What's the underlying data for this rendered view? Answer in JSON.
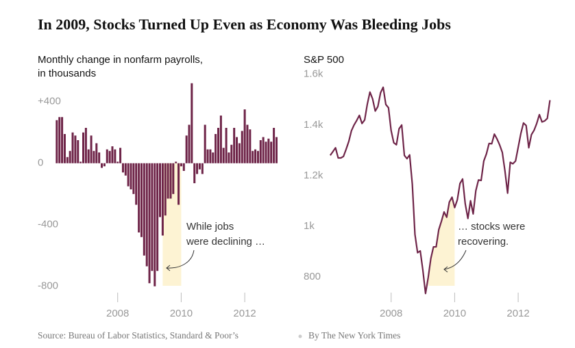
{
  "title": "In 2009, Stocks Turned Up Even as Economy Was Bleeding Jobs",
  "source": "Source: Bureau of Labor Statistics, Standard & Poor’s",
  "byline": "By The New York Times",
  "chart_data": [
    {
      "type": "bar",
      "ylabel": [
        "Monthly change in nonfarm payrolls,",
        "in thousands"
      ],
      "color": "#6e2448",
      "xlim": [
        2006,
        2013.4
      ],
      "xticks": [
        2008,
        2010,
        2012
      ],
      "ylim": [
        -850,
        550
      ],
      "yticks": [
        {
          "value": 400,
          "label": "+400"
        },
        0,
        -400,
        -800
      ],
      "grid": false,
      "highlight": {
        "x": [
          2009.417,
          2010
        ],
        "color": "#fdf3d3"
      },
      "annotation": [
        "While jobs",
        "were declining …"
      ],
      "x": [
        2006.083,
        2006.167,
        2006.25,
        2006.333,
        2006.417,
        2006.5,
        2006.583,
        2006.667,
        2006.75,
        2006.833,
        2006.917,
        2007,
        2007.083,
        2007.167,
        2007.25,
        2007.333,
        2007.417,
        2007.5,
        2007.583,
        2007.667,
        2007.75,
        2007.833,
        2007.917,
        2008,
        2008.083,
        2008.167,
        2008.25,
        2008.333,
        2008.417,
        2008.5,
        2008.583,
        2008.667,
        2008.75,
        2008.833,
        2008.917,
        2009,
        2009.083,
        2009.167,
        2009.25,
        2009.333,
        2009.417,
        2009.5,
        2009.583,
        2009.667,
        2009.75,
        2009.833,
        2009.917,
        2010,
        2010.083,
        2010.167,
        2010.25,
        2010.333,
        2010.417,
        2010.5,
        2010.583,
        2010.667,
        2010.75,
        2010.833,
        2010.917,
        2011,
        2011.083,
        2011.167,
        2011.25,
        2011.333,
        2011.417,
        2011.5,
        2011.583,
        2011.667,
        2011.75,
        2011.833,
        2011.917,
        2012,
        2012.083,
        2012.167,
        2012.25,
        2012.333,
        2012.417,
        2012.5,
        2012.583,
        2012.667,
        2012.75,
        2012.833,
        2012.917,
        2013
      ],
      "values": [
        280,
        300,
        300,
        190,
        40,
        80,
        200,
        180,
        150,
        10,
        200,
        230,
        90,
        180,
        80,
        130,
        70,
        -30,
        -20,
        90,
        80,
        110,
        90,
        10,
        100,
        -60,
        -80,
        -150,
        -170,
        -200,
        -270,
        -450,
        -480,
        -600,
        -670,
        -780,
        -700,
        -800,
        -700,
        -350,
        -470,
        -340,
        -230,
        -230,
        -200,
        10,
        -270,
        -20,
        -50,
        180,
        250,
        520,
        -130,
        -70,
        -40,
        -70,
        250,
        90,
        90,
        70,
        190,
        230,
        310,
        100,
        230,
        70,
        120,
        230,
        170,
        130,
        210,
        350,
        250,
        220,
        80,
        90,
        80,
        150,
        170,
        140,
        160,
        140,
        230,
        170
      ]
    },
    {
      "type": "line",
      "ylabel": [
        "S&P 500"
      ],
      "color": "#6e2448",
      "xlim": [
        2006,
        2013.4
      ],
      "xticks": [
        2008,
        2010,
        2012
      ],
      "ylim": [
        760,
        1610
      ],
      "yticks": [
        {
          "value": 1600,
          "label": "1.6k"
        },
        {
          "value": 1400,
          "label": "1.4k"
        },
        {
          "value": 1200,
          "label": "1.2k"
        },
        {
          "value": 1000,
          "label": "1k"
        },
        800
      ],
      "grid": false,
      "highlight": {
        "x": [
          2009.167,
          2010
        ],
        "color": "#fdf3d3"
      },
      "annotation": [
        "… stocks were",
        "recovering."
      ],
      "x": [
        2006.083,
        2006.167,
        2006.25,
        2006.333,
        2006.417,
        2006.5,
        2006.583,
        2006.667,
        2006.75,
        2006.833,
        2006.917,
        2007,
        2007.083,
        2007.167,
        2007.25,
        2007.333,
        2007.417,
        2007.5,
        2007.583,
        2007.667,
        2007.75,
        2007.833,
        2007.917,
        2008,
        2008.083,
        2008.167,
        2008.25,
        2008.333,
        2008.417,
        2008.5,
        2008.583,
        2008.667,
        2008.75,
        2008.833,
        2008.917,
        2009,
        2009.083,
        2009.167,
        2009.25,
        2009.333,
        2009.417,
        2009.5,
        2009.583,
        2009.667,
        2009.75,
        2009.833,
        2009.917,
        2010,
        2010.083,
        2010.167,
        2010.25,
        2010.333,
        2010.417,
        2010.5,
        2010.583,
        2010.667,
        2010.75,
        2010.833,
        2010.917,
        2011,
        2011.083,
        2011.167,
        2011.25,
        2011.333,
        2011.417,
        2011.5,
        2011.583,
        2011.667,
        2011.75,
        2011.833,
        2011.917,
        2012,
        2012.083,
        2012.167,
        2012.25,
        2012.333,
        2012.417,
        2012.5,
        2012.583,
        2012.667,
        2012.75,
        2012.833,
        2012.917,
        2013
      ],
      "values": [
        1280,
        1295,
        1310,
        1270,
        1270,
        1276,
        1304,
        1335,
        1377,
        1400,
        1418,
        1438,
        1406,
        1420,
        1482,
        1530,
        1503,
        1455,
        1473,
        1527,
        1549,
        1481,
        1468,
        1378,
        1330,
        1322,
        1385,
        1400,
        1280,
        1267,
        1282,
        1166,
        968,
        896,
        903,
        826,
        735,
        798,
        873,
        919,
        919,
        987,
        1020,
        1057,
        1036,
        1096,
        1115,
        1074,
        1104,
        1169,
        1187,
        1089,
        1031,
        1101,
        1049,
        1141,
        1183,
        1181,
        1258,
        1286,
        1327,
        1326,
        1364,
        1345,
        1321,
        1292,
        1219,
        1131,
        1253,
        1247,
        1258,
        1312,
        1366,
        1408,
        1398,
        1310,
        1362,
        1379,
        1406,
        1441,
        1412,
        1416,
        1426,
        1498
      ]
    }
  ]
}
